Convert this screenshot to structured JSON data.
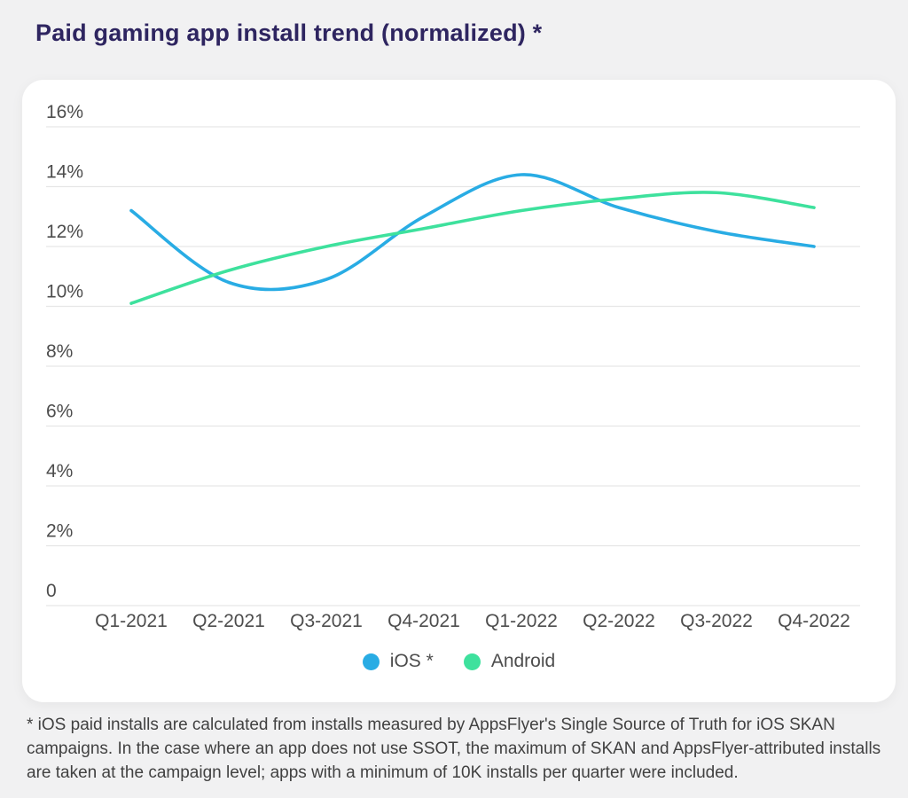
{
  "page": {
    "title": "Paid gaming app install trend (normalized) *",
    "footnote": "* iOS paid installs are calculated from installs measured by AppsFlyer's Single Source of Truth for iOS SKAN campaigns. In the case where an app does not use SSOT, the maximum of SKAN and AppsFlyer-attributed installs are taken at the campaign level; apps with a minimum of 10K installs per quarter were included."
  },
  "chart_data": {
    "type": "line",
    "title": "Paid gaming app install trend (normalized) *",
    "categories": [
      "Q1-2021",
      "Q2-2021",
      "Q3-2021",
      "Q4-2021",
      "Q1-2022",
      "Q2-2022",
      "Q3-2022",
      "Q4-2022"
    ],
    "series": [
      {
        "name": "iOS *",
        "color": "#29ACE4",
        "values": [
          13.2,
          10.8,
          10.9,
          13.0,
          14.4,
          13.3,
          12.5,
          12.0
        ]
      },
      {
        "name": "Android",
        "color": "#3EE19D",
        "values": [
          10.1,
          11.2,
          12.0,
          12.6,
          13.2,
          13.6,
          13.8,
          13.3
        ]
      }
    ],
    "ylim": [
      0,
      16
    ],
    "yticks": [
      0,
      2,
      4,
      6,
      8,
      10,
      12,
      14,
      16
    ],
    "ytick_labels": [
      "0",
      "2%",
      "4%",
      "6%",
      "8%",
      "10%",
      "12%",
      "14%",
      "16%"
    ],
    "xlabel": "",
    "ylabel": "",
    "grid": true,
    "legend_position": "bottom"
  },
  "legend": {
    "items": [
      {
        "label": "iOS *",
        "color": "#29ACE4"
      },
      {
        "label": "Android",
        "color": "#3EE19D"
      }
    ]
  },
  "colors": {
    "ios": "#29ACE4",
    "android": "#3EE19D",
    "title": "#2E2560",
    "axis_text": "#4D4D4D",
    "gridline": "#E6E6E6",
    "card_bg": "#FFFFFF",
    "page_bg": "#F1F1F2",
    "footnote_text": "#414141"
  }
}
